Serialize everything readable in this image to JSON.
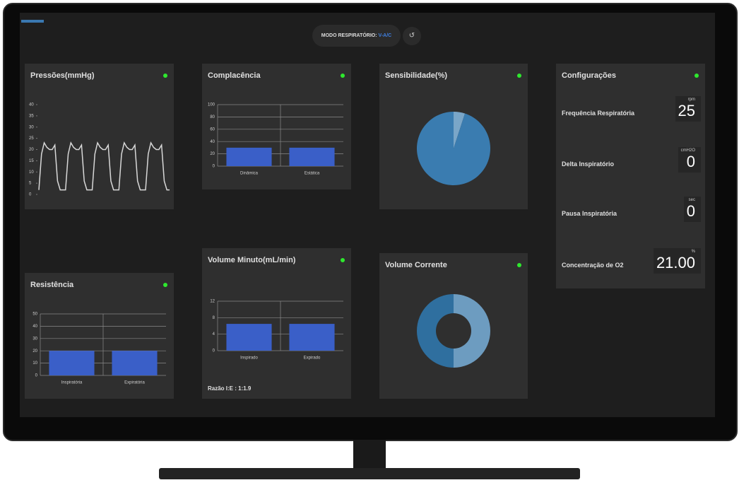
{
  "header": {
    "mode_label": "MODO RESPIRATÓRIO:",
    "mode_value": "V-A/C"
  },
  "panels": [
    {
      "title": "Pressões(mmHg)",
      "chart": {
        "type": "line",
        "color": "#d8d8d8",
        "ylim": [
          0,
          40
        ],
        "yticks": [
          0,
          5,
          10,
          15,
          20,
          25,
          30,
          35,
          40
        ],
        "values": [
          2,
          18,
          23,
          21,
          20,
          20,
          22,
          6,
          2,
          2,
          2,
          18,
          23,
          21,
          20,
          20,
          22,
          6,
          2,
          2,
          2,
          18,
          23,
          21,
          20,
          20,
          22,
          6,
          2,
          2,
          2,
          18,
          23,
          21,
          20,
          20,
          22,
          6,
          2,
          2,
          2,
          18,
          23,
          21,
          20,
          20,
          22,
          6,
          2,
          2
        ]
      }
    },
    {
      "title": "Complacência",
      "chart": {
        "type": "bar",
        "color": "#3a5fc8",
        "categories": [
          "Dinâmica",
          "Estática"
        ],
        "values": [
          30,
          30
        ],
        "ylim": [
          0,
          100
        ],
        "yticks": [
          0,
          20,
          40,
          60,
          80,
          100
        ]
      }
    },
    {
      "title": "Sensibilidade(%)",
      "chart": {
        "type": "pie",
        "values": [
          5,
          95
        ],
        "colors": [
          "#7aa6c8",
          "#3a7cb0"
        ]
      }
    },
    {
      "title": "Resistência",
      "chart": {
        "type": "bar",
        "color": "#3a5fc8",
        "categories": [
          "Inspiratória",
          "Expiratória"
        ],
        "values": [
          20,
          20
        ],
        "ylim": [
          0,
          50
        ],
        "yticks": [
          0,
          10,
          20,
          30,
          40,
          50
        ]
      }
    },
    {
      "title": "Volume Minuto(mL/min)",
      "footer": "Razão I:E : 1:1.9",
      "chart": {
        "type": "bar",
        "color": "#3a5fc8",
        "categories": [
          "Inspirado",
          "Expirado"
        ],
        "values": [
          6.5,
          6.5
        ],
        "ylim": [
          0,
          12
        ],
        "yticks": [
          0,
          4,
          8,
          12
        ]
      }
    },
    {
      "title": "Volume Corrente",
      "chart": {
        "type": "donut",
        "values": [
          50,
          50
        ],
        "colors": [
          "#6d9cc0",
          "#2f6f9f"
        ]
      }
    }
  ],
  "settings": {
    "title": "Configurações",
    "rows": [
      {
        "label": "Frequência Respiratória",
        "unit": "rpm",
        "value": "25"
      },
      {
        "label": "Delta Inspiratório",
        "unit": "cmH2O",
        "value": "0"
      },
      {
        "label": "Pausa Inspiratória",
        "unit": "sec",
        "value": "0"
      },
      {
        "label": "Concentração de O2",
        "unit": "%",
        "value": "21.00"
      }
    ]
  }
}
